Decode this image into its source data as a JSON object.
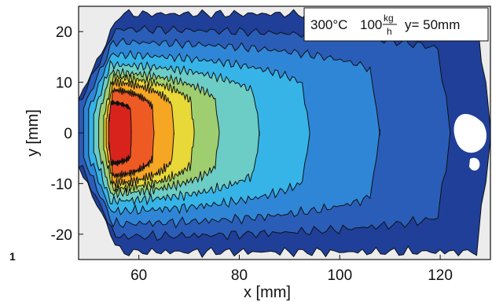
{
  "panel_number": "1",
  "chart_data": {
    "type": "heatmap",
    "title": "",
    "xlabel": "x [mm]",
    "ylabel": "y [mm]",
    "xlim": [
      48,
      130
    ],
    "ylim": [
      -25,
      25
    ],
    "x_ticks": [
      60,
      80,
      100,
      120
    ],
    "y_ticks": [
      20,
      10,
      0,
      -10,
      -20
    ],
    "grid": false,
    "background": "#ececec",
    "annotation": {
      "temp": "300°C",
      "flow_value": "100",
      "flow_num": "kg",
      "flow_den": "h",
      "position": "y= 50mm"
    },
    "colormap": [
      "#1f3f99",
      "#2a5db8",
      "#2f86d6",
      "#36b4e8",
      "#6ccdc6",
      "#9fce70",
      "#e8d838",
      "#f5a623",
      "#ee5a24",
      "#d8231d",
      "#7a1a12"
    ],
    "contour_regions": [
      {
        "level": 1,
        "x_start": 48,
        "x_end": 130,
        "y_half": 23.5,
        "tail": 0.0
      },
      {
        "level": 2,
        "x_start": 48,
        "x_end": 122,
        "y_half": 20.5,
        "tail": 0.25
      },
      {
        "level": 3,
        "x_start": 49,
        "x_end": 108,
        "y_half": 18.0,
        "tail": 0.4
      },
      {
        "level": 4,
        "x_start": 50,
        "x_end": 94,
        "y_half": 15.5,
        "tail": 0.5
      },
      {
        "level": 5,
        "x_start": 51,
        "x_end": 84,
        "y_half": 13.5,
        "tail": 0.55
      },
      {
        "level": 6,
        "x_start": 52,
        "x_end": 76,
        "y_half": 12.0,
        "tail": 0.6
      },
      {
        "level": 7,
        "x_start": 53,
        "x_end": 71,
        "y_half": 11.0,
        "tail": 0.6
      },
      {
        "level": 8,
        "x_start": 53.5,
        "x_end": 67,
        "y_half": 10.0,
        "tail": 0.6
      },
      {
        "level": 9,
        "x_start": 54,
        "x_end": 63,
        "y_half": 8.5,
        "tail": 0.55
      },
      {
        "level": 10,
        "x_start": 54,
        "x_end": 58.5,
        "y_half": 6.0,
        "tail": 0.3
      }
    ]
  }
}
